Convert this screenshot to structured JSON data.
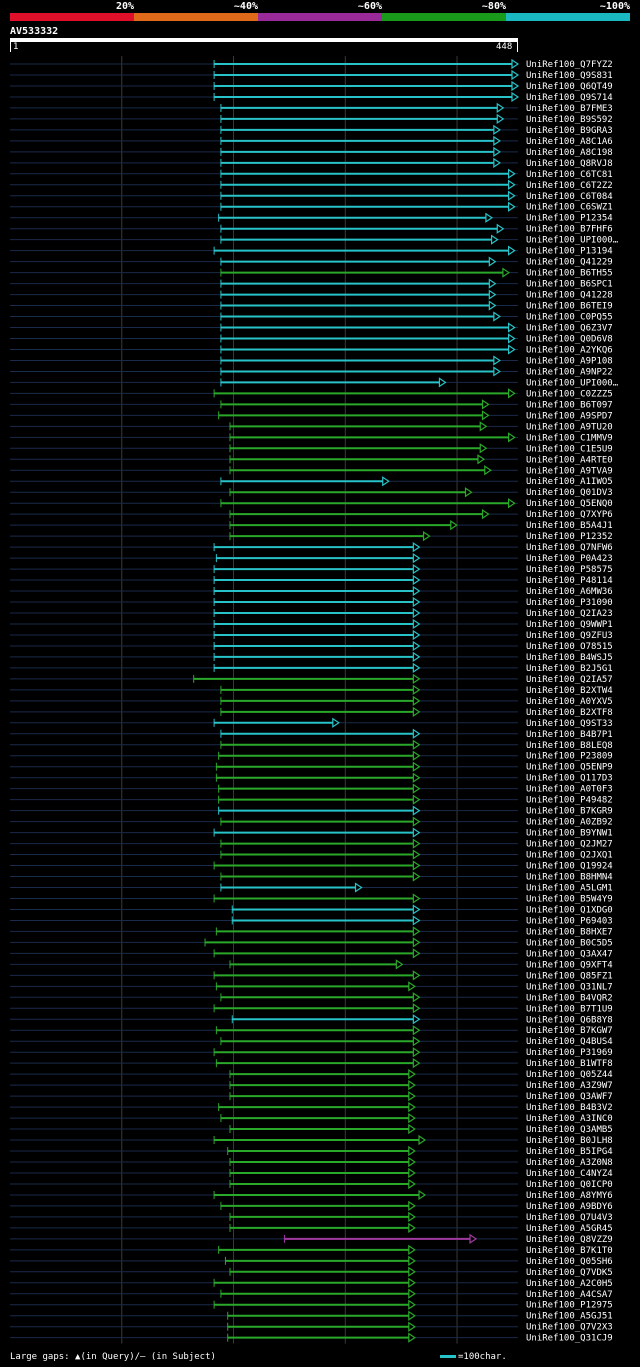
{
  "legend": {
    "bins": [
      {
        "label": "20%",
        "color": "#e0102a"
      },
      {
        "label": "~40%",
        "color": "#e06a1a"
      },
      {
        "label": "~60%",
        "color": "#9a2a9a"
      },
      {
        "label": "~80%",
        "color": "#1a9a1a"
      },
      {
        "label": "~100%",
        "color": "#1ab8c0"
      }
    ]
  },
  "query": {
    "name": "AV533332",
    "start": "1",
    "end": "448",
    "length": 448
  },
  "colors": {
    "cyan": "#27c3c8",
    "green": "#2aa82a",
    "purple": "#a03aa0",
    "track": "#1a2a4a",
    "grid": "#3a3a3a"
  },
  "footer": {
    "gaps_text": "Large gaps: ▲(in Query)/– (in Subject)",
    "scale_text": "=100char."
  },
  "chart_data": {
    "type": "alignment-overview",
    "query_length": 448,
    "hits": [
      {
        "name": "UniRef100_Q7FYZ2",
        "c": "cyan",
        "s": 180,
        "e": 448
      },
      {
        "name": "UniRef100_Q9S831",
        "c": "cyan",
        "s": 180,
        "e": 448
      },
      {
        "name": "UniRef100_Q6QT49",
        "c": "cyan",
        "s": 180,
        "e": 448
      },
      {
        "name": "UniRef100_Q9S714",
        "c": "cyan",
        "s": 180,
        "e": 448
      },
      {
        "name": "UniRef100_B7FME3",
        "c": "cyan",
        "s": 186,
        "e": 435
      },
      {
        "name": "UniRef100_B9S592",
        "c": "cyan",
        "s": 186,
        "e": 435
      },
      {
        "name": "UniRef100_B9GRA3",
        "c": "cyan",
        "s": 186,
        "e": 432
      },
      {
        "name": "UniRef100_A8C1A6",
        "c": "cyan",
        "s": 186,
        "e": 432
      },
      {
        "name": "UniRef100_A8C198",
        "c": "cyan",
        "s": 186,
        "e": 432
      },
      {
        "name": "UniRef100_Q8RVJ8",
        "c": "cyan",
        "s": 186,
        "e": 432
      },
      {
        "name": "UniRef100_C6TC81",
        "c": "cyan",
        "s": 186,
        "e": 445
      },
      {
        "name": "UniRef100_C6T2Z2",
        "c": "cyan",
        "s": 186,
        "e": 445
      },
      {
        "name": "UniRef100_C6T084",
        "c": "cyan",
        "s": 186,
        "e": 445
      },
      {
        "name": "UniRef100_C6SWZ1",
        "c": "cyan",
        "s": 186,
        "e": 445
      },
      {
        "name": "UniRef100_P12354",
        "c": "cyan",
        "s": 184,
        "e": 425
      },
      {
        "name": "UniRef100_B7FHF6",
        "c": "cyan",
        "s": 186,
        "e": 435
      },
      {
        "name": "UniRef100_UPI000…",
        "c": "cyan",
        "s": 186,
        "e": 430
      },
      {
        "name": "UniRef100_P13194",
        "c": "cyan",
        "s": 180,
        "e": 445
      },
      {
        "name": "UniRef100_Q41229",
        "c": "cyan",
        "s": 186,
        "e": 428
      },
      {
        "name": "UniRef100_B6TH55",
        "c": "green",
        "s": 186,
        "e": 440
      },
      {
        "name": "UniRef100_B6SPC1",
        "c": "cyan",
        "s": 186,
        "e": 428
      },
      {
        "name": "UniRef100_Q41228",
        "c": "cyan",
        "s": 186,
        "e": 428
      },
      {
        "name": "UniRef100_B6TEI9",
        "c": "cyan",
        "s": 186,
        "e": 428
      },
      {
        "name": "UniRef100_C0PQ55",
        "c": "cyan",
        "s": 186,
        "e": 432
      },
      {
        "name": "UniRef100_Q6Z3V7",
        "c": "cyan",
        "s": 186,
        "e": 445
      },
      {
        "name": "UniRef100_Q0D6V8",
        "c": "cyan",
        "s": 186,
        "e": 445
      },
      {
        "name": "UniRef100_A2YKQ6",
        "c": "cyan",
        "s": 186,
        "e": 445
      },
      {
        "name": "UniRef100_A9P108",
        "c": "cyan",
        "s": 186,
        "e": 432
      },
      {
        "name": "UniRef100_A9NP22",
        "c": "cyan",
        "s": 186,
        "e": 432
      },
      {
        "name": "UniRef100_UPI000…",
        "c": "cyan",
        "s": 186,
        "e": 384
      },
      {
        "name": "UniRef100_C0ZZZ5",
        "c": "green",
        "s": 180,
        "e": 445
      },
      {
        "name": "UniRef100_B6T097",
        "c": "green",
        "s": 186,
        "e": 422
      },
      {
        "name": "UniRef100_A9SPD7",
        "c": "green",
        "s": 184,
        "e": 422
      },
      {
        "name": "UniRef100_A9TU20",
        "c": "green",
        "s": 194,
        "e": 420
      },
      {
        "name": "UniRef100_C1MMV9",
        "c": "green",
        "s": 194,
        "e": 445
      },
      {
        "name": "UniRef100_C1E5U9",
        "c": "green",
        "s": 194,
        "e": 420
      },
      {
        "name": "UniRef100_A4RTE0",
        "c": "green",
        "s": 194,
        "e": 418
      },
      {
        "name": "UniRef100_A9TVA9",
        "c": "green",
        "s": 194,
        "e": 424
      },
      {
        "name": "UniRef100_A1IWO5",
        "c": "cyan",
        "s": 186,
        "e": 334
      },
      {
        "name": "UniRef100_Q01DV3",
        "c": "green",
        "s": 194,
        "e": 407
      },
      {
        "name": "UniRef100_Q5ENQ0",
        "c": "green",
        "s": 186,
        "e": 445
      },
      {
        "name": "UniRef100_Q7XYP6",
        "c": "green",
        "s": 194,
        "e": 422
      },
      {
        "name": "UniRef100_B5A4J1",
        "c": "green",
        "s": 194,
        "e": 394
      },
      {
        "name": "UniRef100_P12352",
        "c": "green",
        "s": 194,
        "e": 370
      },
      {
        "name": "UniRef100_Q7NFW6",
        "c": "cyan",
        "s": 180,
        "e": 361
      },
      {
        "name": "UniRef100_P0A423",
        "c": "cyan",
        "s": 182,
        "e": 361
      },
      {
        "name": "UniRef100_P58575",
        "c": "cyan",
        "s": 180,
        "e": 361
      },
      {
        "name": "UniRef100_P48114",
        "c": "cyan",
        "s": 180,
        "e": 361
      },
      {
        "name": "UniRef100_A6MW36",
        "c": "cyan",
        "s": 180,
        "e": 361
      },
      {
        "name": "UniRef100_P31090",
        "c": "cyan",
        "s": 180,
        "e": 361
      },
      {
        "name": "UniRef100_Q2IA23",
        "c": "cyan",
        "s": 180,
        "e": 361
      },
      {
        "name": "UniRef100_Q9WWP1",
        "c": "cyan",
        "s": 180,
        "e": 361
      },
      {
        "name": "UniRef100_Q9ZFU3",
        "c": "cyan",
        "s": 180,
        "e": 361
      },
      {
        "name": "UniRef100_O78515",
        "c": "cyan",
        "s": 180,
        "e": 361
      },
      {
        "name": "UniRef100_B4WSJ5",
        "c": "cyan",
        "s": 180,
        "e": 361
      },
      {
        "name": "UniRef100_B2J5G1",
        "c": "cyan",
        "s": 180,
        "e": 361
      },
      {
        "name": "UniRef100_Q2IA57",
        "c": "green",
        "s": 162,
        "e": 361
      },
      {
        "name": "UniRef100_B2XTW4",
        "c": "green",
        "s": 186,
        "e": 361
      },
      {
        "name": "UniRef100_A0YXV5",
        "c": "green",
        "s": 186,
        "e": 361
      },
      {
        "name": "UniRef100_B2XTF8",
        "c": "green",
        "s": 186,
        "e": 361
      },
      {
        "name": "UniRef100_Q9ST33",
        "c": "cyan",
        "s": 180,
        "e": 290
      },
      {
        "name": "UniRef100_B4B7P1",
        "c": "cyan",
        "s": 186,
        "e": 361
      },
      {
        "name": "UniRef100_B8LEQ8",
        "c": "green",
        "s": 186,
        "e": 361
      },
      {
        "name": "UniRef100_P23809",
        "c": "green",
        "s": 184,
        "e": 361
      },
      {
        "name": "UniRef100_Q5ENP9",
        "c": "green",
        "s": 182,
        "e": 361
      },
      {
        "name": "UniRef100_Q117D3",
        "c": "green",
        "s": 182,
        "e": 361
      },
      {
        "name": "UniRef100_A0T0F3",
        "c": "green",
        "s": 184,
        "e": 361
      },
      {
        "name": "UniRef100_P49482",
        "c": "green",
        "s": 184,
        "e": 361
      },
      {
        "name": "UniRef100_B7KGR9",
        "c": "cyan",
        "s": 184,
        "e": 361
      },
      {
        "name": "UniRef100_A0ZB92",
        "c": "green",
        "s": 186,
        "e": 361
      },
      {
        "name": "UniRef100_B9YNW1",
        "c": "cyan",
        "s": 180,
        "e": 361
      },
      {
        "name": "UniRef100_Q2JM27",
        "c": "green",
        "s": 186,
        "e": 361
      },
      {
        "name": "UniRef100_Q2JXQ1",
        "c": "green",
        "s": 186,
        "e": 361
      },
      {
        "name": "UniRef100_Q19924",
        "c": "green",
        "s": 180,
        "e": 361
      },
      {
        "name": "UniRef100_B8HMN4",
        "c": "green",
        "s": 186,
        "e": 361
      },
      {
        "name": "UniRef100_A5LGM1",
        "c": "cyan",
        "s": 186,
        "e": 310
      },
      {
        "name": "UniRef100_B5W4Y9",
        "c": "green",
        "s": 180,
        "e": 361
      },
      {
        "name": "UniRef100_Q1XDG0",
        "c": "cyan",
        "s": 196,
        "e": 361
      },
      {
        "name": "UniRef100_P69403",
        "c": "cyan",
        "s": 196,
        "e": 361
      },
      {
        "name": "UniRef100_B8HXE7",
        "c": "green",
        "s": 182,
        "e": 361
      },
      {
        "name": "UniRef100_B0C5D5",
        "c": "green",
        "s": 172,
        "e": 361
      },
      {
        "name": "UniRef100_Q3AX47",
        "c": "green",
        "s": 180,
        "e": 361
      },
      {
        "name": "UniRef100_Q9XFT4",
        "c": "green",
        "s": 194,
        "e": 346
      },
      {
        "name": "UniRef100_Q85FZ1",
        "c": "green",
        "s": 180,
        "e": 361
      },
      {
        "name": "UniRef100_Q31NL7",
        "c": "green",
        "s": 182,
        "e": 357
      },
      {
        "name": "UniRef100_B4VQR2",
        "c": "green",
        "s": 186,
        "e": 361
      },
      {
        "name": "UniRef100_B7T1U9",
        "c": "green",
        "s": 180,
        "e": 361
      },
      {
        "name": "UniRef100_Q6B8Y8",
        "c": "cyan",
        "s": 196,
        "e": 361
      },
      {
        "name": "UniRef100_B7KGW7",
        "c": "green",
        "s": 182,
        "e": 361
      },
      {
        "name": "UniRef100_Q4BUS4",
        "c": "green",
        "s": 186,
        "e": 361
      },
      {
        "name": "UniRef100_P31969",
        "c": "green",
        "s": 180,
        "e": 361
      },
      {
        "name": "UniRef100_B1WTF8",
        "c": "green",
        "s": 182,
        "e": 361
      },
      {
        "name": "UniRef100_Q05Z44",
        "c": "green",
        "s": 194,
        "e": 357
      },
      {
        "name": "UniRef100_A3Z9W7",
        "c": "green",
        "s": 194,
        "e": 357
      },
      {
        "name": "UniRef100_Q3AWF7",
        "c": "green",
        "s": 194,
        "e": 357
      },
      {
        "name": "UniRef100_B4B3V2",
        "c": "green",
        "s": 184,
        "e": 357
      },
      {
        "name": "UniRef100_A3INC0",
        "c": "green",
        "s": 186,
        "e": 357
      },
      {
        "name": "UniRef100_Q3AMB5",
        "c": "green",
        "s": 194,
        "e": 357
      },
      {
        "name": "UniRef100_B0JLH8",
        "c": "green",
        "s": 180,
        "e": 366
      },
      {
        "name": "UniRef100_B5IPG4",
        "c": "green",
        "s": 192,
        "e": 357
      },
      {
        "name": "UniRef100_A3Z0N8",
        "c": "green",
        "s": 194,
        "e": 357
      },
      {
        "name": "UniRef100_C4NYZ4",
        "c": "green",
        "s": 194,
        "e": 357
      },
      {
        "name": "UniRef100_Q0ICP0",
        "c": "green",
        "s": 194,
        "e": 357
      },
      {
        "name": "UniRef100_A8YMY6",
        "c": "green",
        "s": 180,
        "e": 366
      },
      {
        "name": "UniRef100_A9BDY6",
        "c": "green",
        "s": 186,
        "e": 357
      },
      {
        "name": "UniRef100_Q7U4V3",
        "c": "green",
        "s": 194,
        "e": 357
      },
      {
        "name": "UniRef100_A5GR45",
        "c": "green",
        "s": 194,
        "e": 357
      },
      {
        "name": "UniRef100_Q8VZZ9",
        "c": "purple",
        "s": 242,
        "e": 411
      },
      {
        "name": "UniRef100_B7K1T0",
        "c": "green",
        "s": 184,
        "e": 357
      },
      {
        "name": "UniRef100_Q05SH6",
        "c": "green",
        "s": 190,
        "e": 357
      },
      {
        "name": "UniRef100_Q7VDK5",
        "c": "green",
        "s": 194,
        "e": 357
      },
      {
        "name": "UniRef100_A2C0H5",
        "c": "green",
        "s": 180,
        "e": 357
      },
      {
        "name": "UniRef100_A4CSA7",
        "c": "green",
        "s": 186,
        "e": 357
      },
      {
        "name": "UniRef100_P12975",
        "c": "green",
        "s": 180,
        "e": 357
      },
      {
        "name": "UniRef100_A5GJ51",
        "c": "green",
        "s": 192,
        "e": 357
      },
      {
        "name": "UniRef100_Q7V2X3",
        "c": "green",
        "s": 192,
        "e": 357
      },
      {
        "name": "UniRef100_Q31CJ9",
        "c": "green",
        "s": 192,
        "e": 357
      }
    ]
  }
}
